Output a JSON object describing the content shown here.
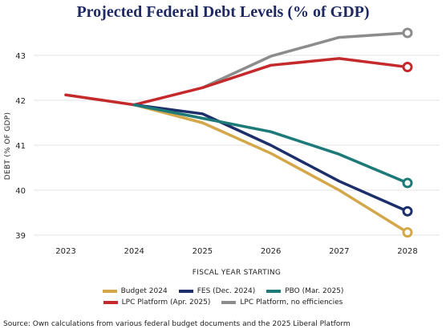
{
  "title": "Projected Federal Debt Levels (% of GDP)",
  "source": "Source: Own calculations from various federal budget documents and the 2025 Liberal Platform",
  "chart_data": {
    "type": "line",
    "title": "Projected Federal Debt Levels (% of GDP)",
    "xlabel": "FISCAL YEAR STARTING",
    "ylabel": "DEBT (% OF GDP)",
    "x": [
      "2023",
      "2024",
      "2025",
      "2026",
      "2027",
      "2028"
    ],
    "y_ticks": [
      "39",
      "40",
      "41",
      "42",
      "43"
    ],
    "ylim": [
      38.8,
      43.6
    ],
    "grid": "horizontal",
    "legend_placement": "bottom",
    "series": [
      {
        "name": "LPC Platform, no efficiencies",
        "color": "#8c8c8c",
        "values": [
          null,
          null,
          42.28,
          42.98,
          43.4,
          43.5
        ],
        "end_marker": true
      },
      {
        "name": "LPC Platform (Apr. 2025)",
        "color": "#c4292b",
        "values": [
          42.12,
          41.9,
          42.28,
          42.78,
          42.93,
          42.74
        ],
        "end_marker": true
      },
      {
        "name": "Budget 2024",
        "color": "#d4a84a",
        "values": [
          null,
          41.9,
          41.5,
          40.82,
          40.0,
          39.06
        ],
        "end_marker": true
      },
      {
        "name": "FES (Dec. 2024)",
        "color": "#1c2f6b",
        "values": [
          null,
          41.9,
          41.7,
          41.0,
          40.2,
          39.53
        ],
        "end_marker": true
      },
      {
        "name": "PBO (Mar. 2025)",
        "color": "#1d7a78",
        "values": [
          null,
          41.9,
          41.6,
          41.3,
          40.8,
          40.16
        ],
        "end_marker": true
      }
    ]
  },
  "legend": {
    "row1": [
      {
        "label": "Budget 2024",
        "color": "#d4a84a"
      },
      {
        "label": "FES (Dec. 2024)",
        "color": "#1c2f6b"
      },
      {
        "label": "PBO (Mar. 2025)",
        "color": "#1d7a78"
      }
    ],
    "row2": [
      {
        "label": "LPC Platform (Apr. 2025)",
        "color": "#c4292b"
      },
      {
        "label": "LPC Platform, no efficiencies",
        "color": "#8c8c8c"
      }
    ]
  }
}
